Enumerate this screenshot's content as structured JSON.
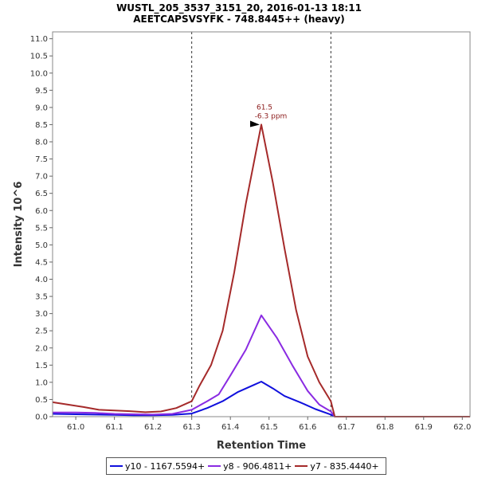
{
  "header": {
    "title": "WUSTL_205_3537_3151_20, 2016-01-13 18:11",
    "subtitle": "AEETCAPSVSYFK - 748.8445++ (heavy)"
  },
  "chart_data": {
    "type": "line",
    "xlabel": "Retention Time",
    "ylabel": "Intensity 10^6",
    "xlim": [
      60.94,
      62.02
    ],
    "ylim": [
      0,
      11.2
    ],
    "xticks": [
      "61.0",
      "61.1",
      "61.2",
      "61.3",
      "61.4",
      "61.5",
      "61.6",
      "61.7",
      "61.8",
      "61.9",
      "62.0"
    ],
    "yticks": [
      "0.0",
      "0.5",
      "1.0",
      "1.5",
      "2.0",
      "2.5",
      "3.0",
      "3.5",
      "4.0",
      "4.5",
      "5.0",
      "5.5",
      "6.0",
      "6.5",
      "7.0",
      "7.5",
      "8.0",
      "8.5",
      "9.0",
      "9.5",
      "10.0",
      "10.5",
      "11.0"
    ],
    "boundaries": [
      61.3,
      61.66
    ],
    "annotation": {
      "x": 61.48,
      "y": 8.5,
      "line1": "61.5",
      "line2": "-6.3 ppm"
    },
    "legend_position": "bottom",
    "series": [
      {
        "name": "y10 - 1167.5594+",
        "color": "#1010dd",
        "points": [
          [
            60.94,
            0.08
          ],
          [
            61.0,
            0.07
          ],
          [
            61.05,
            0.06
          ],
          [
            61.1,
            0.05
          ],
          [
            61.15,
            0.04
          ],
          [
            61.2,
            0.04
          ],
          [
            61.25,
            0.05
          ],
          [
            61.3,
            0.09
          ],
          [
            61.34,
            0.25
          ],
          [
            61.38,
            0.45
          ],
          [
            61.42,
            0.72
          ],
          [
            61.46,
            0.92
          ],
          [
            61.48,
            1.02
          ],
          [
            61.51,
            0.82
          ],
          [
            61.54,
            0.6
          ],
          [
            61.58,
            0.42
          ],
          [
            61.62,
            0.22
          ],
          [
            61.66,
            0.06
          ],
          [
            61.67,
            0.0
          ],
          [
            62.02,
            0.0
          ]
        ]
      },
      {
        "name": "y8 - 906.4811+",
        "color": "#8a2be2",
        "points": [
          [
            60.94,
            0.12
          ],
          [
            61.0,
            0.12
          ],
          [
            61.05,
            0.11
          ],
          [
            61.1,
            0.08
          ],
          [
            61.15,
            0.07
          ],
          [
            61.2,
            0.06
          ],
          [
            61.25,
            0.08
          ],
          [
            61.3,
            0.2
          ],
          [
            61.34,
            0.45
          ],
          [
            61.37,
            0.65
          ],
          [
            61.4,
            1.2
          ],
          [
            61.44,
            1.95
          ],
          [
            61.48,
            2.95
          ],
          [
            61.52,
            2.3
          ],
          [
            61.56,
            1.5
          ],
          [
            61.6,
            0.75
          ],
          [
            61.63,
            0.35
          ],
          [
            61.66,
            0.15
          ],
          [
            61.67,
            0.0
          ],
          [
            62.02,
            0.0
          ]
        ]
      },
      {
        "name": "y7 - 835.4440+",
        "color": "#a52a2a",
        "points": [
          [
            60.94,
            0.42
          ],
          [
            60.98,
            0.35
          ],
          [
            61.02,
            0.28
          ],
          [
            61.06,
            0.2
          ],
          [
            61.1,
            0.18
          ],
          [
            61.14,
            0.16
          ],
          [
            61.18,
            0.13
          ],
          [
            61.22,
            0.15
          ],
          [
            61.26,
            0.25
          ],
          [
            61.3,
            0.45
          ],
          [
            61.32,
            0.9
          ],
          [
            61.35,
            1.5
          ],
          [
            61.38,
            2.5
          ],
          [
            61.41,
            4.2
          ],
          [
            61.44,
            6.2
          ],
          [
            61.48,
            8.5
          ],
          [
            61.51,
            6.8
          ],
          [
            61.54,
            4.9
          ],
          [
            61.57,
            3.1
          ],
          [
            61.6,
            1.75
          ],
          [
            61.63,
            1.0
          ],
          [
            61.66,
            0.45
          ],
          [
            61.67,
            0.0
          ],
          [
            62.02,
            0.0
          ]
        ]
      }
    ]
  }
}
